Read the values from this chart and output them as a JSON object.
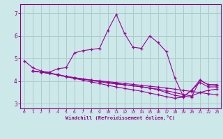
{
  "bg_color": "#cce8e8",
  "grid_color": "#aacccc",
  "line_color": "#990099",
  "xlabel": "Windchill (Refroidissement éolien,°C)",
  "xlabel_color": "#880088",
  "tick_color": "#880088",
  "spine_color": "#880088",
  "ylim": [
    2.8,
    7.4
  ],
  "xlim": [
    -0.5,
    23.5
  ],
  "yticks": [
    3,
    4,
    5,
    6,
    7
  ],
  "xticks": [
    0,
    1,
    2,
    3,
    4,
    5,
    6,
    7,
    8,
    9,
    10,
    11,
    12,
    13,
    14,
    15,
    16,
    17,
    18,
    19,
    20,
    21,
    22,
    23
  ],
  "lines": [
    {
      "x": [
        0,
        1,
        2,
        3,
        4,
        5,
        6,
        7,
        8,
        9,
        10,
        11,
        12,
        13,
        14,
        15,
        16,
        17,
        18,
        19,
        20,
        21,
        22,
        23
      ],
      "y": [
        4.9,
        4.6,
        4.45,
        4.4,
        4.55,
        4.6,
        5.25,
        5.35,
        5.4,
        5.45,
        6.25,
        6.95,
        6.1,
        5.5,
        5.45,
        6.0,
        5.7,
        5.3,
        4.15,
        3.35,
        3.3,
        4.05,
        3.85,
        3.85
      ]
    },
    {
      "x": [
        1,
        2,
        3,
        4,
        5,
        6,
        7,
        8,
        9,
        10,
        11,
        12,
        13,
        14,
        15,
        16,
        17,
        18,
        19,
        20,
        21,
        22,
        23
      ],
      "y": [
        4.45,
        4.4,
        4.35,
        4.3,
        4.2,
        4.15,
        4.1,
        4.05,
        4.02,
        3.98,
        3.94,
        3.9,
        3.86,
        3.82,
        3.78,
        3.74,
        3.7,
        3.65,
        3.6,
        3.55,
        3.5,
        3.45,
        3.4
      ]
    },
    {
      "x": [
        1,
        2,
        3,
        4,
        5,
        6,
        7,
        8,
        9,
        10,
        11,
        12,
        13,
        14,
        15,
        16,
        17,
        18,
        19,
        20,
        21,
        22,
        23
      ],
      "y": [
        4.45,
        4.4,
        4.35,
        4.3,
        4.2,
        4.15,
        4.1,
        4.05,
        4.0,
        3.95,
        3.9,
        3.85,
        3.8,
        3.75,
        3.7,
        3.65,
        3.58,
        3.5,
        3.42,
        3.35,
        3.5,
        3.6,
        3.65
      ]
    },
    {
      "x": [
        1,
        2,
        3,
        4,
        5,
        6,
        7,
        8,
        9,
        10,
        11,
        12,
        13,
        14,
        15,
        16,
        17,
        18,
        19,
        20,
        21,
        22,
        23
      ],
      "y": [
        4.45,
        4.4,
        4.35,
        4.28,
        4.22,
        4.16,
        4.1,
        4.04,
        3.98,
        3.92,
        3.88,
        3.84,
        3.8,
        3.76,
        3.7,
        3.62,
        3.5,
        3.38,
        3.32,
        3.6,
        4.05,
        3.85,
        3.82
      ]
    },
    {
      "x": [
        1,
        2,
        3,
        4,
        5,
        6,
        7,
        8,
        9,
        10,
        11,
        12,
        13,
        14,
        15,
        16,
        17,
        18,
        19,
        20,
        21,
        22,
        23
      ],
      "y": [
        4.45,
        4.4,
        4.35,
        4.28,
        4.2,
        4.12,
        4.05,
        3.97,
        3.9,
        3.82,
        3.75,
        3.68,
        3.62,
        3.56,
        3.48,
        3.4,
        3.32,
        3.25,
        3.3,
        3.6,
        3.95,
        3.75,
        3.75
      ]
    }
  ]
}
